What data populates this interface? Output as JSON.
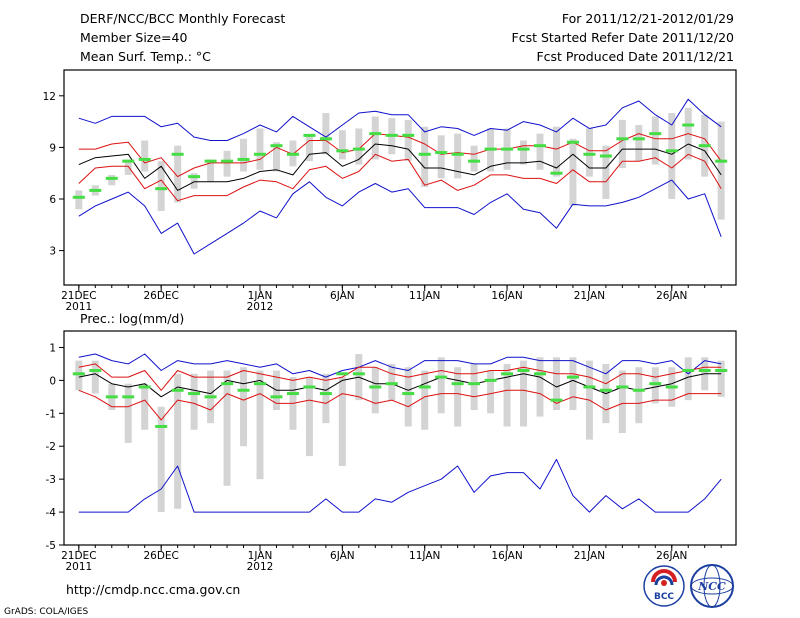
{
  "header": {
    "title": "DERF/NCC/BCC Monthly Forecast",
    "member_size": "Member Size=40",
    "variable": "Mean Surf. Temp.: °C",
    "forecast_period": "For 2011/12/21-2012/01/29",
    "started_refer_date": "Fcst Started Refer Date 2011/12/20",
    "produced_date": "Fcst Produced Date 2011/12/21"
  },
  "footer": {
    "url": "http://cmdp.ncc.cma.gov.cn",
    "grads_credit": "GrADS: COLA/IGES",
    "logo_bcc_text": "BCC",
    "logo_ncc_text": "NCC"
  },
  "colors": {
    "box": "#d4d4d4",
    "median": "#44dd44",
    "mean": "#000000",
    "spread": "#dd1111",
    "envelope": "#1111cc",
    "frame": "#000000"
  },
  "chart_data": [
    {
      "type": "box",
      "ylabel": "Mean Surf. Temp.: °C",
      "ylim": [
        1,
        13.5
      ],
      "yticks": [
        3,
        6,
        9,
        12
      ],
      "x": [
        1,
        2,
        3,
        4,
        5,
        6,
        7,
        8,
        9,
        10,
        11,
        12,
        13,
        14,
        15,
        16,
        17,
        18,
        19,
        20,
        21,
        22,
        23,
        24,
        25,
        26,
        27,
        28,
        29,
        30,
        31,
        32,
        33,
        34,
        35,
        36,
        37,
        38,
        39,
        40
      ],
      "xlim": [
        0.1,
        40.9
      ],
      "xticks": [
        {
          "x": 1,
          "label": "21DEC",
          "sublabel": "2011"
        },
        {
          "x": 6,
          "label": "26DEC",
          "sublabel": ""
        },
        {
          "x": 12,
          "label": "1JAN",
          "sublabel": "2012"
        },
        {
          "x": 17,
          "label": "6JAN",
          "sublabel": ""
        },
        {
          "x": 22,
          "label": "11JAN",
          "sublabel": ""
        },
        {
          "x": 27,
          "label": "16JAN",
          "sublabel": ""
        },
        {
          "x": 32,
          "label": "21JAN",
          "sublabel": ""
        },
        {
          "x": 37,
          "label": "26JAN",
          "sublabel": ""
        }
      ],
      "box_low": [
        5.4,
        6.2,
        6.8,
        7.4,
        7.6,
        5.3,
        5.8,
        6.6,
        7.0,
        7.3,
        7.6,
        7.7,
        7.6,
        7.9,
        8.2,
        8.6,
        8.3,
        8.0,
        8.3,
        8.6,
        8.2,
        6.7,
        7.2,
        7.2,
        7.6,
        7.6,
        7.7,
        8.0,
        7.7,
        7.3,
        5.6,
        7.3,
        6.0,
        7.8,
        8.2,
        8.0,
        6.0,
        8.3,
        7.3,
        7.2
      ],
      "box_high": [
        6.5,
        6.8,
        7.4,
        8.3,
        9.4,
        8.2,
        9.1,
        7.5,
        8.3,
        8.8,
        9.5,
        10.1,
        9.3,
        9.4,
        9.7,
        11.0,
        10.0,
        10.1,
        10.8,
        10.7,
        10.6,
        10.2,
        9.7,
        9.8,
        9.1,
        10.1,
        10.1,
        9.4,
        9.8,
        10.2,
        9.5,
        10.1,
        9.1,
        10.6,
        10.3,
        10.8,
        11.0,
        11.3,
        10.9,
        10.5
      ],
      "box_low2": [
        null,
        null,
        null,
        null,
        null,
        null,
        null,
        null,
        null,
        null,
        null,
        null,
        null,
        null,
        null,
        null,
        null,
        null,
        null,
        null,
        null,
        null,
        null,
        null,
        null,
        null,
        null,
        null,
        null,
        null,
        null,
        null,
        null,
        null,
        null,
        null,
        null,
        null,
        null,
        4.8
      ],
      "median": [
        6.1,
        6.5,
        7.2,
        8.2,
        8.3,
        6.6,
        8.6,
        7.3,
        8.2,
        8.2,
        8.3,
        8.6,
        9.1,
        8.6,
        9.7,
        9.5,
        8.8,
        8.9,
        9.8,
        9.7,
        9.7,
        8.6,
        8.7,
        8.6,
        8.2,
        8.9,
        8.9,
        8.9,
        9.1,
        7.5,
        9.3,
        8.6,
        8.5,
        9.5,
        9.5,
        9.8,
        8.8,
        10.3,
        9.1,
        8.2
      ],
      "series": [
        {
          "name": "ensemble-max",
          "color": "envelope",
          "values": [
            10.7,
            10.4,
            10.8,
            10.8,
            10.8,
            10.2,
            10.4,
            9.6,
            9.4,
            9.4,
            9.8,
            10.3,
            9.9,
            10.8,
            10.2,
            9.6,
            10.3,
            11.0,
            11.1,
            10.9,
            10.9,
            9.9,
            10.2,
            10.1,
            9.7,
            10.1,
            10.0,
            10.5,
            10.3,
            9.9,
            10.7,
            10.1,
            10.3,
            11.3,
            11.7,
            10.9,
            10.3,
            11.8,
            10.9,
            10.2
          ]
        },
        {
          "name": "mean-plus-spread",
          "color": "spread",
          "values": [
            8.9,
            8.9,
            9.2,
            9.3,
            8.1,
            8.4,
            7.3,
            7.8,
            8.1,
            8.1,
            8.1,
            8.3,
            9.0,
            8.6,
            9.4,
            9.4,
            8.7,
            8.9,
            9.8,
            9.7,
            9.6,
            9.2,
            8.6,
            8.7,
            8.6,
            8.9,
            8.9,
            9.1,
            9.1,
            8.9,
            9.3,
            8.8,
            8.8,
            9.4,
            9.8,
            9.5,
            9.5,
            9.8,
            9.5,
            8.2
          ]
        },
        {
          "name": "ensemble-mean",
          "color": "mean",
          "values": [
            8.0,
            8.4,
            8.5,
            8.6,
            7.2,
            7.9,
            6.5,
            7.0,
            7.0,
            7.0,
            7.2,
            7.6,
            7.7,
            7.4,
            8.6,
            8.7,
            7.9,
            8.3,
            9.2,
            9.1,
            8.9,
            7.8,
            7.8,
            7.6,
            7.4,
            7.9,
            8.1,
            8.1,
            8.2,
            7.8,
            8.6,
            7.8,
            7.8,
            8.9,
            8.9,
            8.9,
            8.6,
            9.2,
            8.8,
            7.4
          ]
        },
        {
          "name": "mean-minus-spread",
          "color": "spread",
          "values": [
            6.9,
            7.8,
            7.9,
            7.9,
            6.6,
            7.1,
            5.9,
            6.2,
            6.2,
            6.2,
            6.7,
            7.1,
            7.0,
            6.6,
            7.7,
            7.9,
            7.2,
            7.6,
            8.6,
            8.2,
            8.3,
            6.8,
            7.1,
            6.5,
            6.8,
            7.4,
            7.4,
            7.2,
            7.2,
            6.9,
            7.7,
            7.0,
            7.0,
            8.2,
            8.2,
            8.4,
            7.8,
            8.6,
            8.2,
            6.6
          ]
        },
        {
          "name": "ensemble-min",
          "color": "envelope",
          "values": [
            5.0,
            5.6,
            6.0,
            6.4,
            5.6,
            4.0,
            4.6,
            2.8,
            3.4,
            4.0,
            4.6,
            5.3,
            4.9,
            6.3,
            7.0,
            6.1,
            5.6,
            6.4,
            6.9,
            6.4,
            6.6,
            5.5,
            5.5,
            5.5,
            5.1,
            5.8,
            6.3,
            5.4,
            5.2,
            4.3,
            5.7,
            5.6,
            5.6,
            5.8,
            6.1,
            6.6,
            7.1,
            6.0,
            6.3,
            3.8
          ]
        }
      ]
    },
    {
      "type": "box",
      "ylabel": "Prec.: log(mm/d)",
      "ylim": [
        -5,
        1.5
      ],
      "yticks": [
        -5,
        -4,
        -3,
        -2,
        -1,
        0,
        1
      ],
      "x": [
        1,
        2,
        3,
        4,
        5,
        6,
        7,
        8,
        9,
        10,
        11,
        12,
        13,
        14,
        15,
        16,
        17,
        18,
        19,
        20,
        21,
        22,
        23,
        24,
        25,
        26,
        27,
        28,
        29,
        30,
        31,
        32,
        33,
        34,
        35,
        36,
        37,
        38,
        39,
        40
      ],
      "xlim": [
        0.1,
        40.9
      ],
      "xticks": [
        {
          "x": 1,
          "label": "21DEC",
          "sublabel": "2011"
        },
        {
          "x": 6,
          "label": "26DEC",
          "sublabel": ""
        },
        {
          "x": 12,
          "label": "1JAN",
          "sublabel": "2012"
        },
        {
          "x": 17,
          "label": "6JAN",
          "sublabel": ""
        },
        {
          "x": 22,
          "label": "11JAN",
          "sublabel": ""
        },
        {
          "x": 27,
          "label": "16JAN",
          "sublabel": ""
        },
        {
          "x": 32,
          "label": "21JAN",
          "sublabel": ""
        },
        {
          "x": 37,
          "label": "26JAN",
          "sublabel": ""
        }
      ],
      "box_low": [
        -0.3,
        -0.4,
        -0.9,
        -1.9,
        -1.5,
        -4.0,
        -3.9,
        -1.5,
        -1.3,
        -3.2,
        -2.0,
        -3.0,
        -0.9,
        -1.5,
        -2.3,
        -1.3,
        -2.6,
        -0.6,
        -1.0,
        -0.6,
        -1.4,
        -1.5,
        -1.0,
        -1.4,
        -0.9,
        -1.0,
        -1.4,
        -1.4,
        -1.1,
        -0.9,
        -0.9,
        -1.8,
        -1.3,
        -1.6,
        -1.3,
        -0.7,
        -0.8,
        -0.6,
        -0.3,
        -0.5
      ],
      "box_high": [
        0.6,
        0.6,
        -0.1,
        -0.1,
        -0.1,
        -0.8,
        0.2,
        0.2,
        0.3,
        0.3,
        0.4,
        0.3,
        0.3,
        0.1,
        0.1,
        0.2,
        0.1,
        0.8,
        0.4,
        0.5,
        0.4,
        0.3,
        0.7,
        0.4,
        0.5,
        0.3,
        0.5,
        0.6,
        0.7,
        0.7,
        0.7,
        0.6,
        0.5,
        0.3,
        0.4,
        0.4,
        0.4,
        0.7,
        0.7,
        0.6
      ],
      "median": [
        0.2,
        0.3,
        -0.5,
        -0.5,
        -0.2,
        -1.4,
        -0.3,
        -0.4,
        -0.5,
        -0.1,
        -0.3,
        -0.1,
        -0.5,
        -0.4,
        -0.2,
        -0.4,
        0.2,
        0.2,
        -0.2,
        -0.1,
        -0.4,
        -0.2,
        0.1,
        -0.1,
        -0.1,
        0.0,
        0.2,
        0.3,
        0.2,
        -0.6,
        0.1,
        -0.2,
        -0.3,
        -0.2,
        -0.3,
        -0.1,
        -0.2,
        0.3,
        0.3,
        0.3
      ],
      "series": [
        {
          "name": "ensemble-max",
          "color": "envelope",
          "values": [
            0.7,
            0.8,
            0.6,
            0.5,
            0.8,
            0.3,
            0.6,
            0.5,
            0.5,
            0.6,
            0.5,
            0.4,
            0.5,
            0.2,
            0.3,
            0.1,
            0.3,
            0.4,
            0.6,
            0.4,
            0.3,
            0.6,
            0.6,
            0.6,
            0.5,
            0.5,
            0.7,
            0.7,
            0.6,
            0.6,
            0.6,
            0.4,
            0.2,
            0.6,
            0.6,
            0.5,
            0.6,
            0.2,
            0.6,
            0.5
          ]
        },
        {
          "name": "mean-plus-spread",
          "color": "spread",
          "values": [
            0.4,
            0.5,
            0.1,
            0.1,
            0.3,
            -0.3,
            0.3,
            0.1,
            0.1,
            0.1,
            0.3,
            0.2,
            0.1,
            0.0,
            0.1,
            0.0,
            0.1,
            0.4,
            0.4,
            0.2,
            0.1,
            0.2,
            0.3,
            0.2,
            0.2,
            0.3,
            0.3,
            0.4,
            0.3,
            0.2,
            0.2,
            0.1,
            -0.1,
            0.2,
            0.2,
            0.1,
            0.2,
            0.3,
            0.4,
            0.4
          ]
        },
        {
          "name": "ensemble-mean",
          "color": "mean",
          "values": [
            0.1,
            0.2,
            -0.1,
            -0.2,
            -0.1,
            -0.5,
            -0.2,
            -0.3,
            -0.4,
            0.0,
            -0.1,
            0.0,
            -0.3,
            -0.3,
            -0.2,
            -0.3,
            0.0,
            0.1,
            -0.1,
            -0.1,
            -0.3,
            -0.1,
            0.1,
            0.0,
            -0.1,
            0.0,
            0.1,
            0.2,
            0.1,
            -0.2,
            0.0,
            -0.2,
            -0.4,
            -0.2,
            -0.3,
            -0.2,
            -0.1,
            0.1,
            0.2,
            0.2
          ]
        },
        {
          "name": "mean-minus-spread",
          "color": "spread",
          "values": [
            -0.3,
            -0.5,
            -0.8,
            -0.8,
            -0.6,
            -1.2,
            -0.6,
            -0.7,
            -0.9,
            -0.4,
            -0.6,
            -0.4,
            -0.7,
            -0.7,
            -0.6,
            -0.7,
            -0.4,
            -0.5,
            -0.7,
            -0.6,
            -0.8,
            -0.5,
            -0.4,
            -0.4,
            -0.5,
            -0.4,
            -0.3,
            -0.3,
            -0.4,
            -0.7,
            -0.5,
            -0.6,
            -0.9,
            -0.7,
            -0.7,
            -0.6,
            -0.6,
            -0.4,
            -0.4,
            -0.4
          ]
        },
        {
          "name": "ensemble-min",
          "color": "envelope",
          "values": [
            -4.0,
            -4.0,
            -4.0,
            -4.0,
            -3.6,
            -3.3,
            -2.6,
            -4.0,
            -4.0,
            -4.0,
            -4.0,
            -4.0,
            -4.0,
            -4.0,
            -4.0,
            -3.6,
            -4.0,
            -4.0,
            -3.6,
            -3.7,
            -3.4,
            -3.2,
            -3.0,
            -2.6,
            -3.4,
            -2.9,
            -2.8,
            -2.8,
            -3.3,
            -2.4,
            -3.5,
            -4.0,
            -3.5,
            -3.9,
            -3.6,
            -4.0,
            -4.0,
            -4.0,
            -3.6,
            -3.0
          ]
        }
      ]
    }
  ]
}
